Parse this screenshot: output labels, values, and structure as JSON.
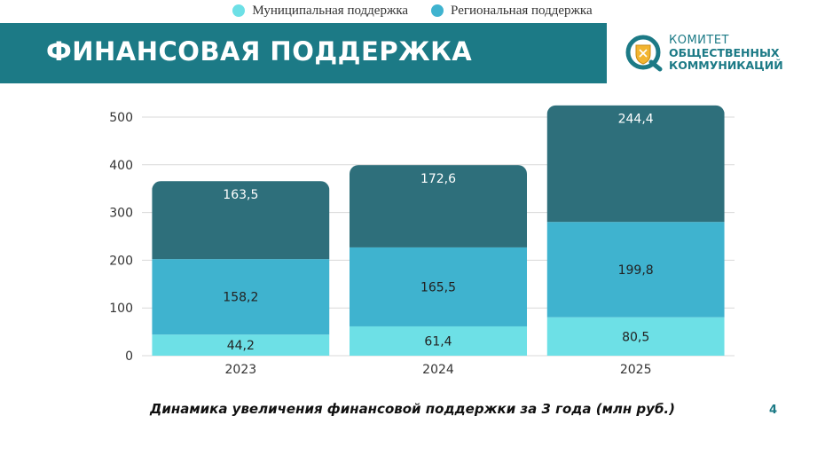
{
  "legend": {
    "items": [
      {
        "label": "Муниципальная поддержка",
        "color": "#6de0e6"
      },
      {
        "label": "Региональная поддержка",
        "color": "#3fb3cf"
      }
    ]
  },
  "banner": {
    "title": "ФИНАНСОВАЯ ПОДДЕРЖКА",
    "color": "#1c7a86"
  },
  "logo": {
    "line1": "КОМИТЕТ",
    "line2": "ОБЩЕСТВЕННЫХ",
    "line3": "КОММУНИКАЦИЙ",
    "icon": "committee-logo-icon"
  },
  "chart_data": {
    "type": "bar",
    "stacked": true,
    "categories": [
      "2023",
      "2024",
      "2025"
    ],
    "series": [
      {
        "name": "Муниципальная поддержка",
        "values": [
          44.2,
          61.4,
          80.5
        ],
        "labels": [
          "44,2",
          "61,4",
          "80,5"
        ],
        "color": "#6de0e6"
      },
      {
        "name": "Региональная поддержка",
        "values": [
          158.2,
          165.5,
          199.8
        ],
        "labels": [
          "158,2",
          "165,5",
          "199,8"
        ],
        "color": "#3fb3cf"
      },
      {
        "name": "",
        "values": [
          163.5,
          172.6,
          244.4
        ],
        "labels": [
          "163,5",
          "172,6",
          "244,4"
        ],
        "color": "#2e6f7b"
      }
    ],
    "yticks": [
      "0",
      "100",
      "200",
      "300",
      "400",
      "500"
    ],
    "ylim": [
      0,
      500
    ],
    "grid": true,
    "legend_position": "top-center",
    "title": "Динамика увеличения финансовой поддержки за 3 года (млн руб.)"
  },
  "page_number": "4"
}
